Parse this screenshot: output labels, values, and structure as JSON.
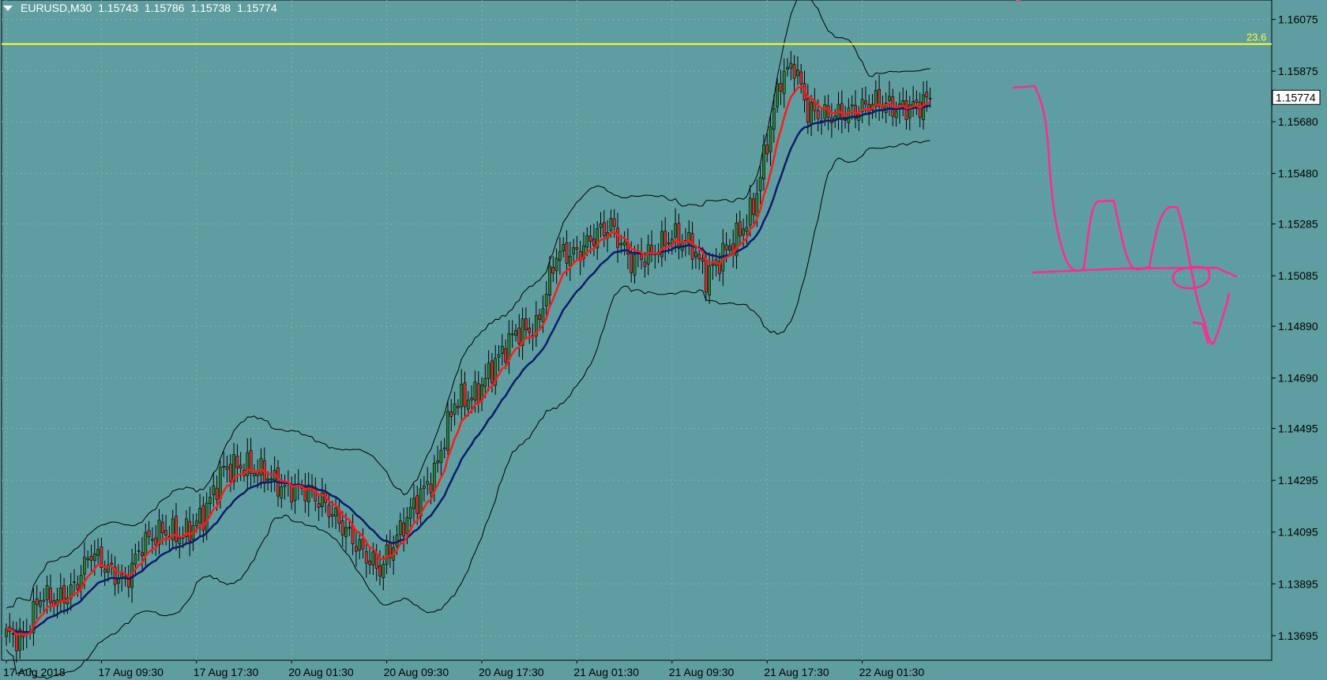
{
  "header": {
    "symbol": "EURUSD,M30",
    "open": "1.15743",
    "high": "1.15786",
    "low": "1.15738",
    "close": "1.15774"
  },
  "colors": {
    "background": "#5f9ea0",
    "axis_text": "#000000",
    "bull_candle": "#2e7d32",
    "bear_candle": "#d32f2f",
    "ma_fast": "#ff1a1a",
    "ma_slow": "#0d1b6b",
    "bands": "#000000",
    "fib_line": "#ffff33",
    "drawing": "#ff2a8f",
    "grid": "#7fb3b5",
    "price_box_bg": "#ffffff"
  },
  "chart_data": {
    "type": "candlestick",
    "ylim": [
      1.136,
      1.1615
    ],
    "y_ticks": [
      "1.16075",
      "1.15875",
      "1.15680",
      "1.15480",
      "1.15285",
      "1.15085",
      "1.14890",
      "1.14690",
      "1.14495",
      "1.14295",
      "1.14095",
      "1.13895",
      "1.13695"
    ],
    "x_ticks": [
      "17 Aug 2018",
      "17 Aug 09:30",
      "17 Aug 17:30",
      "20 Aug 01:30",
      "20 Aug 09:30",
      "20 Aug 17:30",
      "21 Aug 01:30",
      "21 Aug 09:30",
      "21 Aug 17:30",
      "22 Aug 01:30"
    ],
    "current_price": "1.15774",
    "fib_level": {
      "label": "23.6",
      "price": 1.1598
    },
    "anchors": [
      [
        0,
        1.137
      ],
      [
        5,
        1.1368
      ],
      [
        10,
        1.1385
      ],
      [
        15,
        1.1383
      ],
      [
        20,
        1.1388
      ],
      [
        25,
        1.1402
      ],
      [
        30,
        1.1395
      ],
      [
        35,
        1.139
      ],
      [
        40,
        1.1405
      ],
      [
        46,
        1.141
      ],
      [
        52,
        1.1408
      ],
      [
        58,
        1.1416
      ],
      [
        64,
        1.1434
      ],
      [
        70,
        1.1435
      ],
      [
        76,
        1.1432
      ],
      [
        82,
        1.1426
      ],
      [
        88,
        1.1426
      ],
      [
        94,
        1.142
      ],
      [
        100,
        1.141
      ],
      [
        106,
        1.14
      ],
      [
        110,
        1.1395
      ],
      [
        114,
        1.1405
      ],
      [
        120,
        1.142
      ],
      [
        126,
        1.1432
      ],
      [
        132,
        1.146
      ],
      [
        138,
        1.1462
      ],
      [
        144,
        1.1475
      ],
      [
        150,
        1.1487
      ],
      [
        156,
        1.1488
      ],
      [
        162,
        1.1517
      ],
      [
        168,
        1.1517
      ],
      [
        174,
        1.1525
      ],
      [
        178,
        1.1528
      ],
      [
        184,
        1.1514
      ],
      [
        190,
        1.1517
      ],
      [
        196,
        1.1524
      ],
      [
        202,
        1.152
      ],
      [
        206,
        1.1508
      ],
      [
        210,
        1.1515
      ],
      [
        216,
        1.1525
      ],
      [
        220,
        1.1535
      ],
      [
        224,
        1.156
      ],
      [
        228,
        1.1585
      ],
      [
        232,
        1.159
      ],
      [
        236,
        1.1572
      ],
      [
        242,
        1.157
      ],
      [
        250,
        1.1572
      ],
      [
        256,
        1.1576
      ],
      [
        262,
        1.1573
      ],
      [
        268,
        1.1574
      ],
      [
        272,
        1.1577
      ]
    ]
  },
  "drawing_note": "Hand-drawn pink forecast path with horizontal level near 1.1508"
}
